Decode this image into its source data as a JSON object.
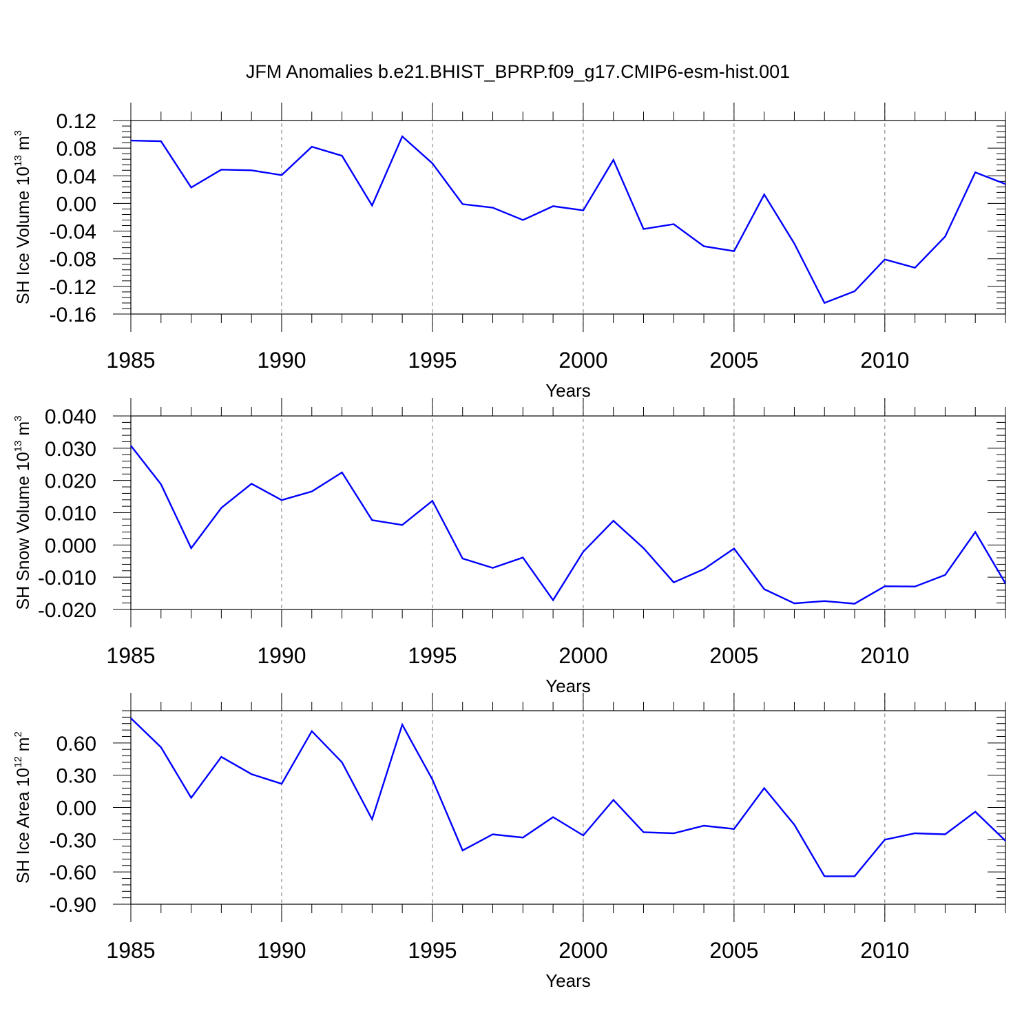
{
  "title": "JFM Anomalies b.e21.BHIST_BPRP.f09_g17.CMIP6-esm-hist.001",
  "colors": {
    "series": "#0000ff",
    "axes": "#000000",
    "grid": "#777777"
  },
  "chart_data": [
    {
      "type": "line",
      "ylabel": {
        "text": "SH Ice Volume 10",
        "exponent": "13",
        "unit": " m",
        "unit_exponent": "3"
      },
      "xlabel": "Years",
      "xlim": [
        1985,
        2014
      ],
      "ylim": [
        -0.16,
        0.12
      ],
      "xticks": [
        "1985",
        "1990",
        "1995",
        "2000",
        "2005",
        "2010"
      ],
      "yticks": [
        "0.12",
        "0.08",
        "0.04",
        "0.00",
        "-0.04",
        "-0.08",
        "-0.12",
        "-0.16"
      ],
      "x": [
        1985,
        1986,
        1987,
        1988,
        1989,
        1990,
        1991,
        1992,
        1993,
        1994,
        1995,
        1996,
        1997,
        1998,
        1999,
        2000,
        2001,
        2002,
        2003,
        2004,
        2005,
        2006,
        2007,
        2008,
        2009,
        2010,
        2011,
        2012,
        2013,
        2014
      ],
      "values": [
        0.091,
        0.09,
        0.023,
        0.049,
        0.048,
        0.041,
        0.082,
        0.069,
        -0.003,
        0.097,
        0.058,
        -0.001,
        -0.006,
        -0.024,
        -0.004,
        -0.01,
        0.063,
        -0.037,
        -0.03,
        -0.062,
        -0.069,
        0.013,
        -0.058,
        -0.144,
        -0.127,
        -0.081,
        -0.093,
        -0.048,
        0.045,
        0.028
      ]
    },
    {
      "type": "line",
      "ylabel": {
        "text": "SH Snow Volume 10",
        "exponent": "13",
        "unit": " m",
        "unit_exponent": "3"
      },
      "xlabel": "Years",
      "xlim": [
        1985,
        2014
      ],
      "ylim": [
        -0.02,
        0.04
      ],
      "xticks": [
        "1985",
        "1990",
        "1995",
        "2000",
        "2005",
        "2010"
      ],
      "yticks": [
        "0.040",
        "0.030",
        "0.020",
        "0.010",
        "0.000",
        "-0.010",
        "-0.020"
      ],
      "x": [
        1985,
        1986,
        1987,
        1988,
        1989,
        1990,
        1991,
        1992,
        1993,
        1994,
        1995,
        1996,
        1997,
        1998,
        1999,
        2000,
        2001,
        2002,
        2003,
        2004,
        2005,
        2006,
        2007,
        2008,
        2009,
        2010,
        2011,
        2012,
        2013,
        2014
      ],
      "values": [
        0.0308,
        0.0188,
        -0.001,
        0.0115,
        0.019,
        0.0139,
        0.0166,
        0.0225,
        0.0077,
        0.0062,
        0.0137,
        -0.0042,
        -0.0071,
        -0.0039,
        -0.0171,
        -0.0021,
        0.0075,
        -0.001,
        -0.0116,
        -0.0075,
        -0.0011,
        -0.0137,
        -0.0181,
        -0.0174,
        -0.0182,
        -0.0128,
        -0.0129,
        -0.0093,
        0.004,
        -0.0119
      ]
    },
    {
      "type": "line",
      "ylabel": {
        "text": "SH Ice Area 10",
        "exponent": "12",
        "unit": " m",
        "unit_exponent": "2"
      },
      "xlabel": "Years",
      "xlim": [
        1985,
        2014
      ],
      "ylim": [
        -0.9,
        0.9
      ],
      "xticks": [
        "1985",
        "1990",
        "1995",
        "2000",
        "2005",
        "2010"
      ],
      "yticks": [
        "0.60",
        "0.30",
        "0.00",
        "-0.30",
        "-0.60",
        "-0.90"
      ],
      "x": [
        1985,
        1986,
        1987,
        1988,
        1989,
        1990,
        1991,
        1992,
        1993,
        1994,
        1995,
        1996,
        1997,
        1998,
        1999,
        2000,
        2001,
        2002,
        2003,
        2004,
        2005,
        2006,
        2007,
        2008,
        2009,
        2010,
        2011,
        2012,
        2013,
        2014
      ],
      "values": [
        0.83,
        0.56,
        0.09,
        0.47,
        0.31,
        0.22,
        0.71,
        0.42,
        -0.11,
        0.77,
        0.26,
        -0.4,
        -0.25,
        -0.28,
        -0.09,
        -0.26,
        0.07,
        -0.23,
        -0.24,
        -0.17,
        -0.2,
        0.18,
        -0.16,
        -0.64,
        -0.64,
        -0.3,
        -0.24,
        -0.25,
        -0.04,
        -0.31
      ]
    }
  ]
}
